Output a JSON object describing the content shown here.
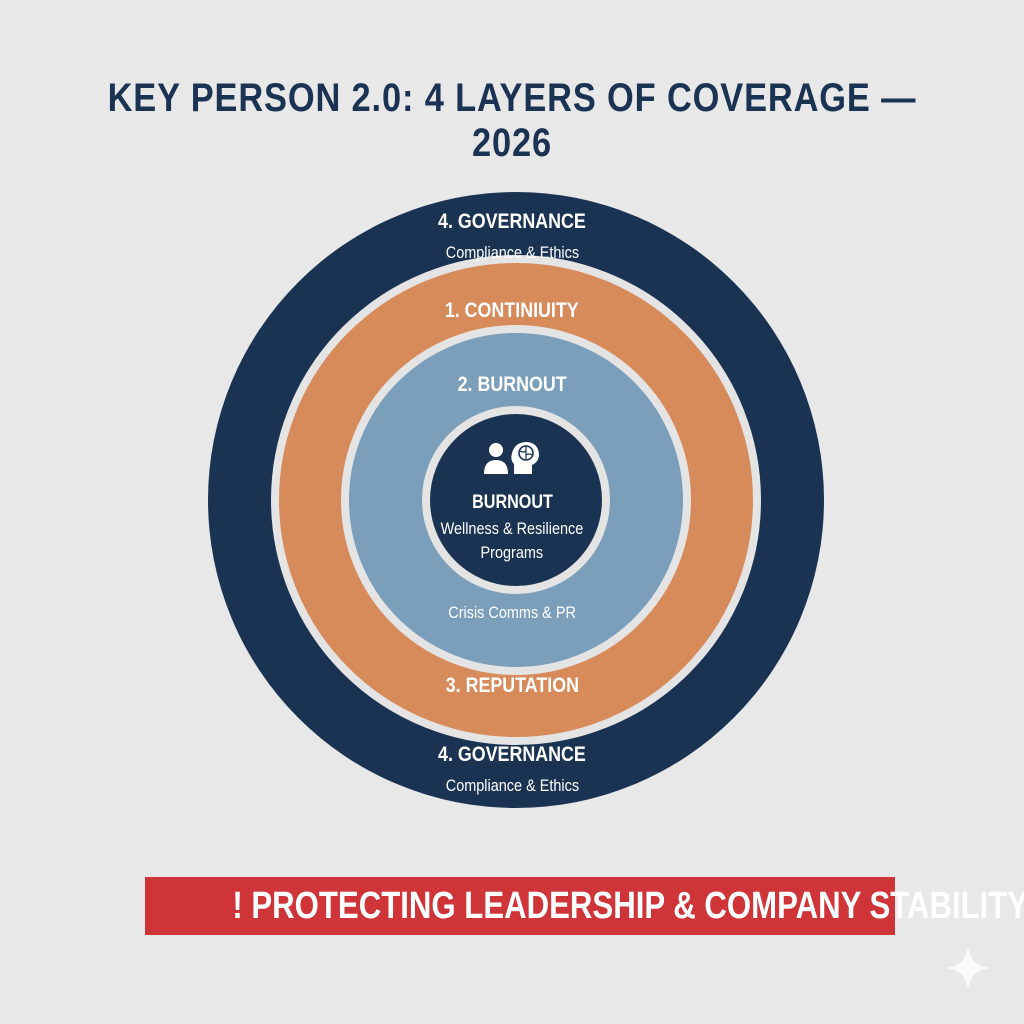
{
  "title": "KEY PERSON 2.0: 4 LAYERS OF COVERAGE — 2026",
  "colors": {
    "governance": "#1b3352",
    "continuity": "#d78a5a",
    "burnout": "#7b9fbb",
    "center": "#1b3352",
    "banner": "#cf3538",
    "background": "#e8e8e8"
  },
  "layers": {
    "governance_top": {
      "heading": "4. GOVERNANCE",
      "sub": "Compliance & Ethics"
    },
    "continuity": {
      "heading": "1. CONTINIUITY"
    },
    "burnout": {
      "heading": "2. BURNOUT",
      "sub": "Crisis Comms & PR"
    },
    "reputation": {
      "heading": "3. REPUTATION"
    },
    "governance_bottom": {
      "heading": "4. GOVERNANCE",
      "sub": "Compliance & Ethics"
    }
  },
  "center": {
    "icon": "person-brain-icon",
    "heading": "BURNOUT",
    "line1": "Wellness & Resilience",
    "line2": "Programs"
  },
  "banner": "! PROTECTING LEADERSHIP & COMPANY STABILITY",
  "corner_icon": "sparkle-icon"
}
